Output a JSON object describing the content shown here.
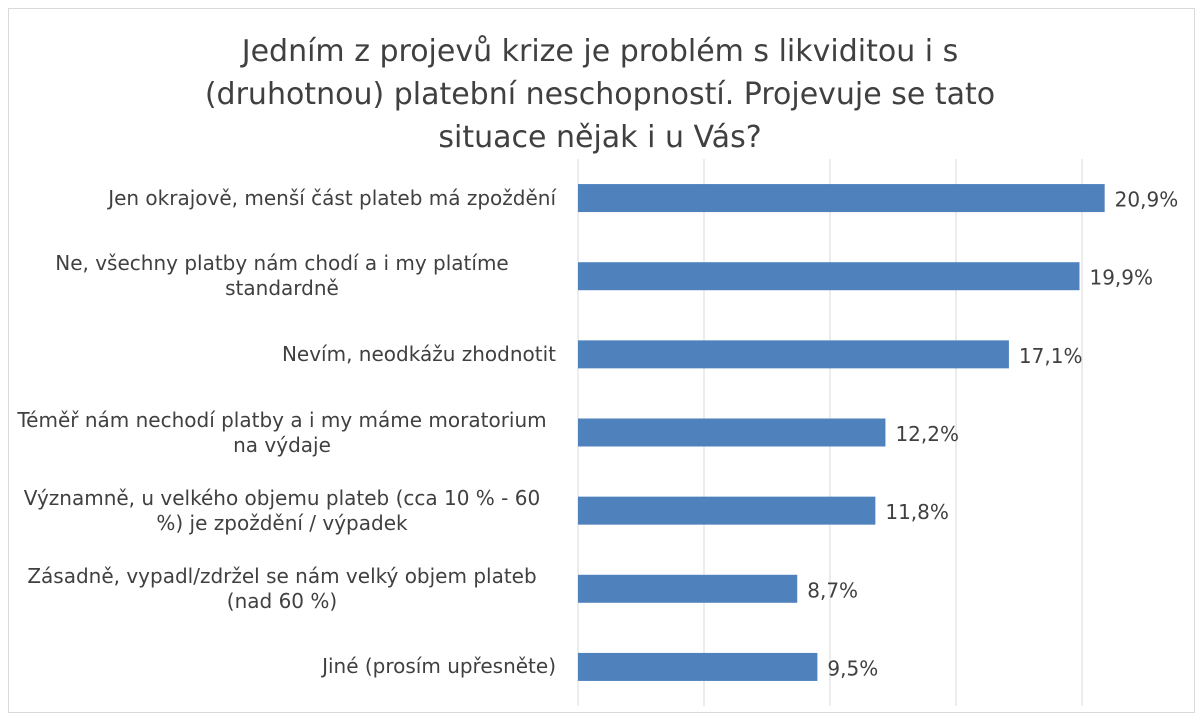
{
  "chart_data": {
    "type": "hbar",
    "title": "Jedním z projevů krize je problém s likviditou i s (druhotnou) platební neschopností. Projevuje se tato situace nějak i u Vás?",
    "categories": [
      "Jen okrajově, menší část plateb má zpoždění",
      "Ne, všechny platby nám chodí a i my platíme standardně",
      "Nevím, neodkážu zhodnotit",
      "Téměř nám nechodí platby a i my máme moratorium na výdaje",
      "Významně, u velkého objemu plateb (cca 10 % - 60 %) je zpoždění / výpadek",
      "Zásadně, vypadl/zdržel se nám velký objem plateb (nad 60 %)",
      "Jiné (prosím upřesněte)"
    ],
    "values": [
      20.9,
      19.9,
      17.1,
      12.2,
      11.8,
      8.7,
      9.5
    ],
    "value_labels": [
      "20,9%",
      "19,9%",
      "17,1%",
      "12,2%",
      "11,8%",
      "8,7%",
      "9,5%"
    ],
    "color": "#4f81bd",
    "xlim": [
      0,
      24
    ],
    "xticks": [
      0,
      5,
      10,
      15,
      20
    ],
    "grid": true
  }
}
